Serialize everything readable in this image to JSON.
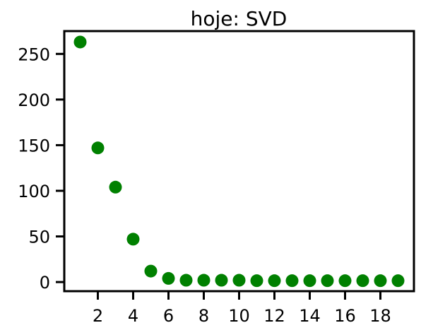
{
  "chart_data": {
    "type": "scatter",
    "title": "hoje: SVD",
    "xlabel": "",
    "ylabel": "",
    "xlim": [
      0.1,
      19.9
    ],
    "ylim": [
      -10,
      275
    ],
    "xticks": [
      2,
      4,
      6,
      8,
      10,
      12,
      14,
      16,
      18
    ],
    "yticks": [
      0,
      50,
      100,
      150,
      200,
      250
    ],
    "grid": false,
    "marker_color": "#008000",
    "points": [
      {
        "x": 1,
        "y": 263
      },
      {
        "x": 2,
        "y": 147
      },
      {
        "x": 3,
        "y": 104
      },
      {
        "x": 4,
        "y": 47
      },
      {
        "x": 5,
        "y": 12
      },
      {
        "x": 6,
        "y": 4
      },
      {
        "x": 7,
        "y": 2
      },
      {
        "x": 8,
        "y": 2
      },
      {
        "x": 9,
        "y": 2
      },
      {
        "x": 10,
        "y": 2
      },
      {
        "x": 11,
        "y": 1.5
      },
      {
        "x": 12,
        "y": 1.5
      },
      {
        "x": 13,
        "y": 1.5
      },
      {
        "x": 14,
        "y": 1.5
      },
      {
        "x": 15,
        "y": 1.5
      },
      {
        "x": 16,
        "y": 1.5
      },
      {
        "x": 17,
        "y": 1.5
      },
      {
        "x": 18,
        "y": 1.5
      },
      {
        "x": 19,
        "y": 1.5
      }
    ]
  }
}
